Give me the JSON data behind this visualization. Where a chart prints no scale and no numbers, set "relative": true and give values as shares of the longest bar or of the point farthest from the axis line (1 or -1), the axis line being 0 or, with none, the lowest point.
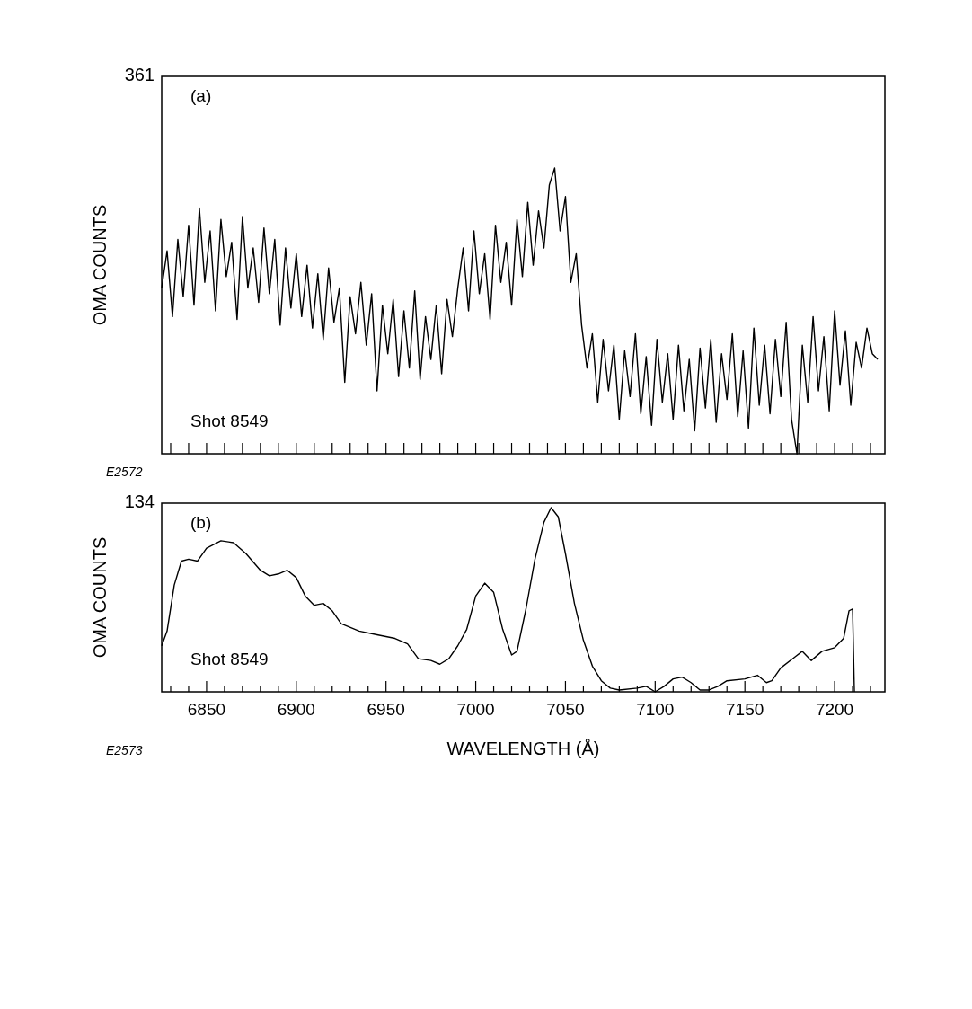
{
  "chart_data": [
    {
      "type": "line",
      "relative": true,
      "ylabel": "OMA COUNTS",
      "annotations": [
        "361",
        "(a)",
        "Shot 8549",
        "E2572"
      ],
      "tick_labels": false,
      "xlim": [
        6825,
        7228
      ],
      "xticks": [
        6830,
        6840,
        6850,
        6860,
        6870,
        6880,
        6890,
        6900,
        6910,
        6920,
        6930,
        6940,
        6950,
        6960,
        6970,
        6980,
        6990,
        7000,
        7010,
        7020,
        7030,
        7040,
        7050,
        7060,
        7070,
        7080,
        7090,
        7100,
        7110,
        7120,
        7130,
        7140,
        7150,
        7160,
        7170,
        7180,
        7190,
        7200,
        7210,
        7220
      ],
      "series": [
        {
          "color": "#000000",
          "x": [
            6825,
            6828,
            6831,
            6834,
            6837,
            6840,
            6843,
            6846,
            6849,
            6852,
            6855,
            6858,
            6861,
            6864,
            6867,
            6870,
            6873,
            6876,
            6879,
            6882,
            6885,
            6888,
            6891,
            6894,
            6897,
            6900,
            6903,
            6906,
            6909,
            6912,
            6915,
            6918,
            6921,
            6924,
            6927,
            6930,
            6933,
            6936,
            6939,
            6942,
            6945,
            6948,
            6951,
            6954,
            6957,
            6960,
            6963,
            6966,
            6969,
            6972,
            6975,
            6978,
            6981,
            6984,
            6987,
            6990,
            6993,
            6996,
            6999,
            7002,
            7005,
            7008,
            7011,
            7014,
            7017,
            7020,
            7023,
            7026,
            7029,
            7032,
            7035,
            7038,
            7041,
            7044,
            7047,
            7050,
            7053,
            7056,
            7059,
            7062,
            7065,
            7068,
            7071,
            7074,
            7077,
            7080,
            7083,
            7086,
            7089,
            7092,
            7095,
            7098,
            7101,
            7104,
            7107,
            7110,
            7113,
            7116,
            7119,
            7122,
            7125,
            7128,
            7131,
            7134,
            7137,
            7140,
            7143,
            7146,
            7149,
            7152,
            7155,
            7158,
            7161,
            7164,
            7167,
            7170,
            7173,
            7176,
            7179,
            7182,
            7185,
            7188,
            7191,
            7194,
            7197,
            7200,
            7203,
            7206,
            7209,
            7212,
            7215,
            7218,
            7221,
            7224
          ],
          "values": [
            0.58,
            0.71,
            0.48,
            0.75,
            0.55,
            0.8,
            0.52,
            0.86,
            0.6,
            0.78,
            0.5,
            0.82,
            0.62,
            0.74,
            0.47,
            0.83,
            0.58,
            0.72,
            0.53,
            0.79,
            0.56,
            0.75,
            0.45,
            0.72,
            0.51,
            0.7,
            0.48,
            0.66,
            0.44,
            0.63,
            0.4,
            0.65,
            0.46,
            0.58,
            0.25,
            0.55,
            0.42,
            0.6,
            0.38,
            0.56,
            0.22,
            0.52,
            0.35,
            0.54,
            0.27,
            0.5,
            0.3,
            0.57,
            0.26,
            0.48,
            0.33,
            0.52,
            0.28,
            0.54,
            0.41,
            0.58,
            0.72,
            0.5,
            0.78,
            0.56,
            0.7,
            0.47,
            0.8,
            0.6,
            0.74,
            0.52,
            0.82,
            0.62,
            0.88,
            0.66,
            0.85,
            0.72,
            0.94,
            1.0,
            0.78,
            0.9,
            0.6,
            0.7,
            0.45,
            0.3,
            0.42,
            0.18,
            0.4,
            0.22,
            0.38,
            0.12,
            0.36,
            0.2,
            0.42,
            0.14,
            0.34,
            0.1,
            0.4,
            0.18,
            0.35,
            0.12,
            0.38,
            0.15,
            0.33,
            0.08,
            0.37,
            0.16,
            0.4,
            0.11,
            0.35,
            0.19,
            0.42,
            0.13,
            0.36,
            0.09,
            0.44,
            0.17,
            0.38,
            0.14,
            0.4,
            0.2,
            0.46,
            0.12,
            0.0,
            0.38,
            0.18,
            0.48,
            0.22,
            0.41,
            0.15,
            0.5,
            0.24,
            0.43,
            0.17,
            0.39,
            0.3,
            0.44,
            0.35,
            0.33
          ]
        }
      ]
    },
    {
      "type": "line",
      "relative": true,
      "ylabel": "OMA COUNTS",
      "xlabel": "WAVELENGTH (Å)",
      "annotations": [
        "134",
        "(b)",
        "Shot 8549",
        "E2573"
      ],
      "tick_labels": "x",
      "xlim": [
        6825,
        7228
      ],
      "xticks": [
        {
          "value": 6830,
          "label": null
        },
        {
          "value": 6840,
          "label": null
        },
        6850,
        {
          "value": 6860,
          "label": null
        },
        {
          "value": 6870,
          "label": null
        },
        {
          "value": 6880,
          "label": null
        },
        {
          "value": 6890,
          "label": null
        },
        6900,
        {
          "value": 6910,
          "label": null
        },
        {
          "value": 6920,
          "label": null
        },
        {
          "value": 6930,
          "label": null
        },
        {
          "value": 6940,
          "label": null
        },
        6950,
        {
          "value": 6960,
          "label": null
        },
        {
          "value": 6970,
          "label": null
        },
        {
          "value": 6980,
          "label": null
        },
        {
          "value": 6990,
          "label": null
        },
        7000,
        {
          "value": 7010,
          "label": null
        },
        {
          "value": 7020,
          "label": null
        },
        {
          "value": 7030,
          "label": null
        },
        {
          "value": 7040,
          "label": null
        },
        7050,
        {
          "value": 7060,
          "label": null
        },
        {
          "value": 7070,
          "label": null
        },
        {
          "value": 7080,
          "label": null
        },
        {
          "value": 7090,
          "label": null
        },
        7100,
        {
          "value": 7110,
          "label": null
        },
        {
          "value": 7120,
          "label": null
        },
        {
          "value": 7130,
          "label": null
        },
        {
          "value": 7140,
          "label": null
        },
        7150,
        {
          "value": 7160,
          "label": null
        },
        {
          "value": 7170,
          "label": null
        },
        {
          "value": 7180,
          "label": null
        },
        {
          "value": 7190,
          "label": null
        },
        7200,
        {
          "value": 7210,
          "label": null
        },
        {
          "value": 7220,
          "label": null
        }
      ],
      "series": [
        {
          "color": "#000000",
          "x": [
            6825,
            6828,
            6832,
            6836,
            6840,
            6845,
            6850,
            6858,
            6865,
            6872,
            6880,
            6885,
            6890,
            6895,
            6900,
            6905,
            6910,
            6915,
            6920,
            6925,
            6935,
            6945,
            6955,
            6962,
            6968,
            6975,
            6980,
            6985,
            6990,
            6995,
            7000,
            7005,
            7010,
            7015,
            7020,
            7023,
            7028,
            7033,
            7038,
            7042,
            7046,
            7050,
            7055,
            7060,
            7065,
            7070,
            7075,
            7080,
            7090,
            7095,
            7100,
            7105,
            7110,
            7115,
            7120,
            7125,
            7130,
            7135,
            7140,
            7150,
            7157,
            7162,
            7165,
            7170,
            7178,
            7182,
            7187,
            7193,
            7200,
            7205,
            7208,
            7210,
            7211
          ],
          "values": [
            0.25,
            0.33,
            0.58,
            0.71,
            0.72,
            0.71,
            0.78,
            0.82,
            0.81,
            0.75,
            0.66,
            0.63,
            0.64,
            0.66,
            0.62,
            0.52,
            0.47,
            0.48,
            0.44,
            0.37,
            0.33,
            0.31,
            0.29,
            0.26,
            0.18,
            0.17,
            0.15,
            0.18,
            0.25,
            0.34,
            0.52,
            0.59,
            0.54,
            0.34,
            0.2,
            0.22,
            0.45,
            0.72,
            0.92,
            1.0,
            0.95,
            0.75,
            0.48,
            0.28,
            0.14,
            0.06,
            0.02,
            0.01,
            0.02,
            0.03,
            0.0,
            0.03,
            0.07,
            0.08,
            0.05,
            0.01,
            0.01,
            0.03,
            0.06,
            0.07,
            0.09,
            0.05,
            0.06,
            0.13,
            0.19,
            0.22,
            0.17,
            0.22,
            0.24,
            0.29,
            0.44,
            0.45,
            0.0
          ]
        }
      ]
    }
  ]
}
